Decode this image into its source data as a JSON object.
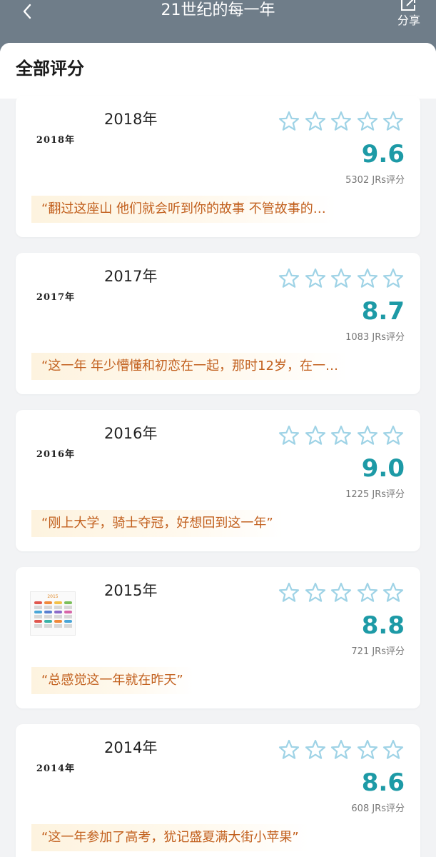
{
  "header": {
    "title": "21世纪的每一年",
    "share_label": "分享"
  },
  "panel": {
    "title": "全部评分"
  },
  "cards": [
    {
      "year": "2018年",
      "thumb_label": "2018年",
      "thumb_type": "text",
      "rating_stars": 0,
      "score": "9.6",
      "count": "5302 JRs评分",
      "quote": "“翻过这座山 他们就会听到你的故事 不管故事的…"
    },
    {
      "year": "2017年",
      "thumb_label": "2017年",
      "thumb_type": "text",
      "rating_stars": 0,
      "score": "8.7",
      "count": "1083 JRs评分",
      "quote": "“这一年 年少懵懂和初恋在一起，那时12岁，在一…"
    },
    {
      "year": "2016年",
      "thumb_label": "2016年",
      "thumb_type": "text",
      "rating_stars": 0,
      "score": "9.0",
      "count": "1225 JRs评分",
      "quote": "“刚上大学，骑士夺冠，好想回到这一年”"
    },
    {
      "year": "2015年",
      "thumb_label": "2015",
      "thumb_type": "calendar",
      "rating_stars": 0,
      "score": "8.8",
      "count": "721 JRs评分",
      "quote": "“总感觉这一年就在昨天”"
    },
    {
      "year": "2014年",
      "thumb_label": "2014年",
      "thumb_type": "text",
      "rating_stars": 0,
      "score": "8.6",
      "count": "608 JRs评分",
      "quote": "“这一年参加了高考，犹记盛夏满大街小苹果”"
    }
  ],
  "icons": {
    "back": "chevron-left-icon",
    "share": "share-icon",
    "star": "star-outline-icon"
  },
  "colors": {
    "header_bg": "#6f7d89",
    "score": "#1d9aa6",
    "star_outline": "#9fd3e6",
    "quote_text": "#c2601e",
    "quote_bg": "#fdf3df"
  }
}
